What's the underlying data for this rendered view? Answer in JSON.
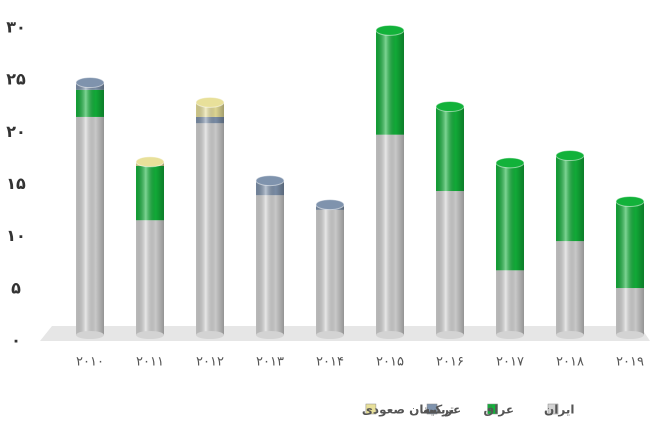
{
  "chart_data": {
    "type": "bar",
    "stacked": true,
    "categories": [
      "۲۰۱۰",
      "۲۰۱۱",
      "۲۰۱۲",
      "۲۰۱۳",
      "۲۰۱۴",
      "۲۰۱۵",
      "۲۰۱۶",
      "۲۰۱۷",
      "۲۰۱۸",
      "۲۰۱۹"
    ],
    "series": [
      {
        "name": "ایران",
        "color": "#d3d3d3",
        "values": [
          20.9,
          11.0,
          20.3,
          13.4,
          12.0,
          19.2,
          13.8,
          6.2,
          9.0,
          4.5
        ]
      },
      {
        "name": "عراق",
        "color": "#12b23a",
        "values": [
          2.6,
          5.2,
          0,
          0,
          0,
          10.0,
          8.1,
          10.3,
          8.2,
          8.3
        ]
      },
      {
        "name": "ترکیه",
        "color": "#7f93ad",
        "values": [
          0.7,
          0,
          0.6,
          1.4,
          0.5,
          0,
          0,
          0,
          0,
          0
        ]
      },
      {
        "name": "عربستان صعودی",
        "color": "#e8e09a",
        "values": [
          0,
          0.4,
          1.4,
          0,
          0,
          0,
          0,
          0,
          0,
          0
        ]
      }
    ],
    "ylim": [
      0,
      30
    ],
    "yticks": [
      {
        "value": 0,
        "label": "۰"
      },
      {
        "value": 5,
        "label": "۵"
      },
      {
        "value": 10,
        "label": "۱۰"
      },
      {
        "value": 15,
        "label": "۱۵"
      },
      {
        "value": 20,
        "label": "۲۰"
      },
      {
        "value": 25,
        "label": "۲۵"
      },
      {
        "value": 30,
        "label": "۳۰"
      }
    ],
    "grid": false,
    "legend": "bottom"
  }
}
